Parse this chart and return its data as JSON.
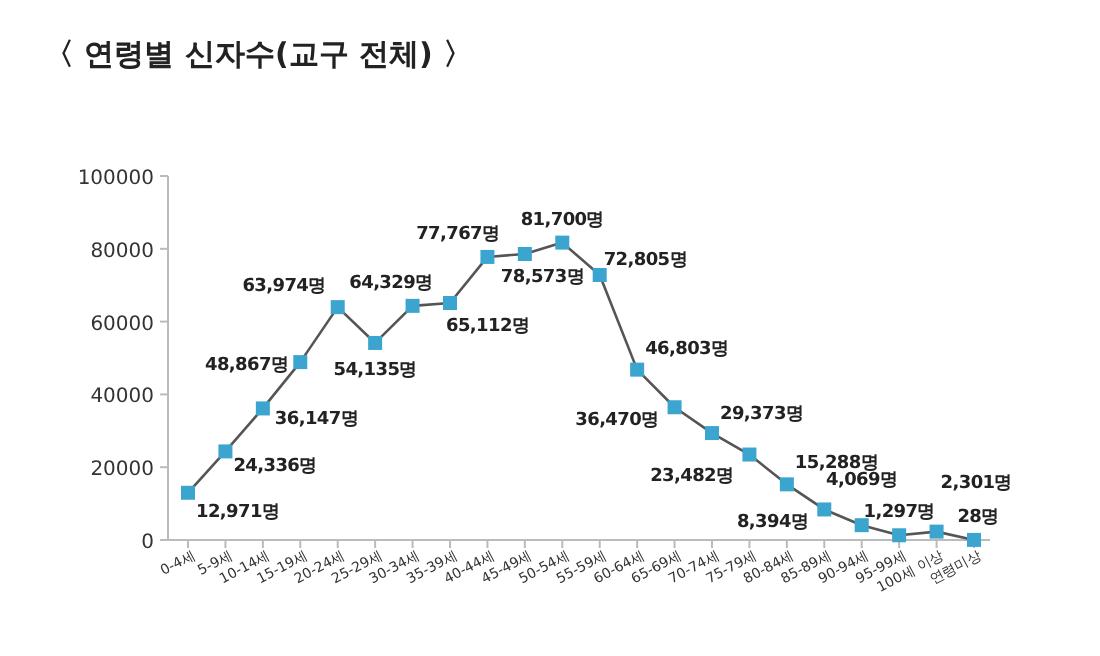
{
  "chart_data": {
    "type": "line",
    "title": "〈 연령별 신자수(교구 전체) 〉",
    "categories": [
      "0-4세",
      "5-9세",
      "10-14세",
      "15-19세",
      "20-24세",
      "25-29세",
      "30-34세",
      "35-39세",
      "40-44세",
      "45-49세",
      "50-54세",
      "55-59세",
      "60-64세",
      "65-69세",
      "70-74세",
      "75-79세",
      "80-84세",
      "85-89세",
      "90-94세",
      "95-99세",
      "100세 이상",
      "연령미상"
    ],
    "series": [
      {
        "color": "#3ba5cf",
        "values": [
          12971,
          24336,
          36147,
          48867,
          63974,
          54135,
          64329,
          65112,
          77767,
          78573,
          81700,
          72805,
          46803,
          36470,
          29373,
          23482,
          15288,
          8394,
          4069,
          1297,
          2301,
          28
        ],
        "value_labels": [
          "12,971명",
          "24,336명",
          "36,147명",
          "48,867명",
          "63,974명",
          "54,135명",
          "64,329명",
          "65,112명",
          "77,767명",
          "78,573명",
          "81,700명",
          "72,805명",
          "46,803명",
          "36,470명",
          "29,373명",
          "23,482명",
          "15,288명",
          "8,394명",
          "4,069명",
          "1,297명",
          "2,301명",
          "28명"
        ]
      }
    ],
    "ylim": [
      0,
      100000
    ],
    "yticks": [
      0,
      20000,
      40000,
      60000,
      80000,
      100000
    ],
    "grid": false,
    "marker": "square",
    "line_style": "solid"
  }
}
